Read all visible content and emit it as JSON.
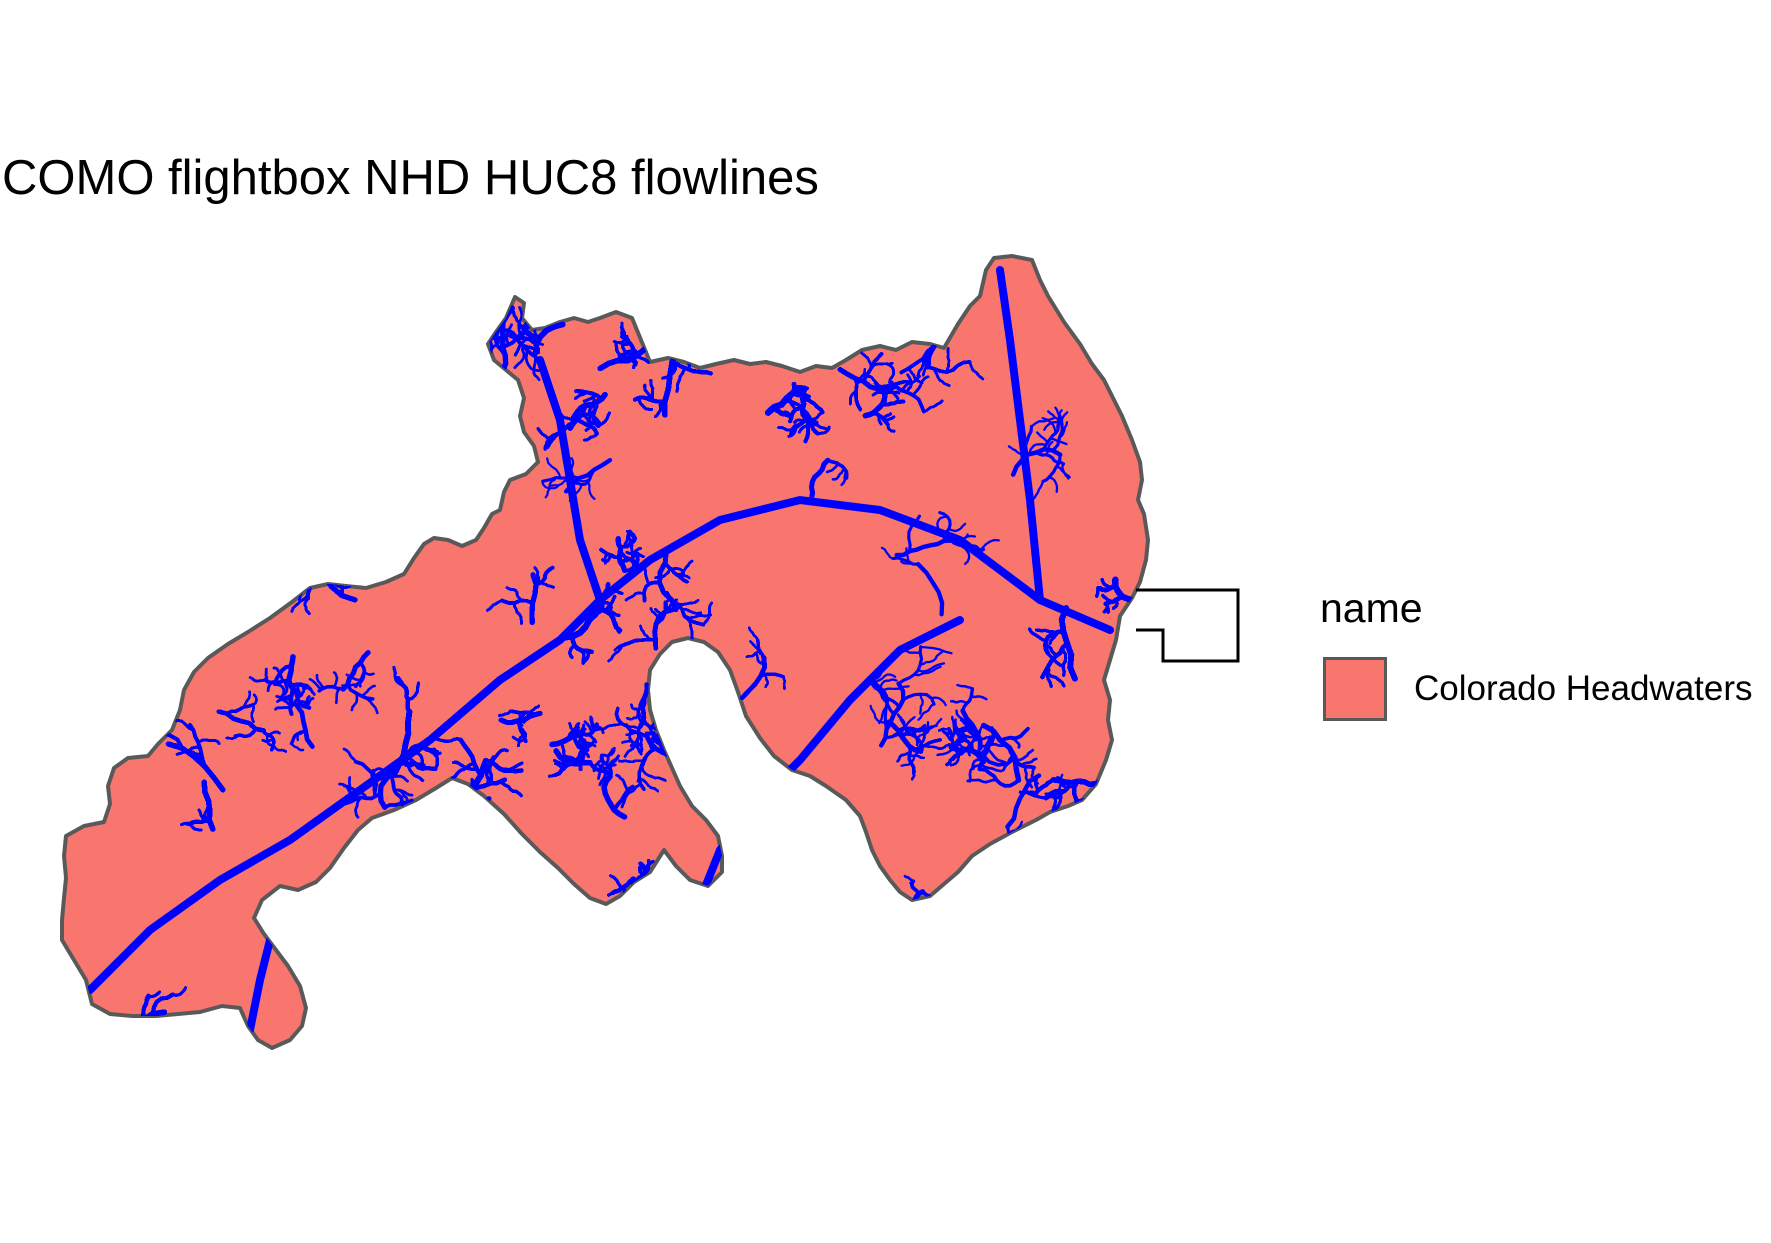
{
  "title": "COMO flightbox NHD HUC8 flowlines",
  "legend": {
    "title": "name",
    "items": [
      {
        "label": "Colorado Headwaters",
        "fill": "#f8766d"
      }
    ]
  },
  "map": {
    "basin_fill": "#f8766d",
    "basin_outline": "#595959",
    "flowline_color": "#0000ff",
    "flightbox_outline": "#000000"
  }
}
